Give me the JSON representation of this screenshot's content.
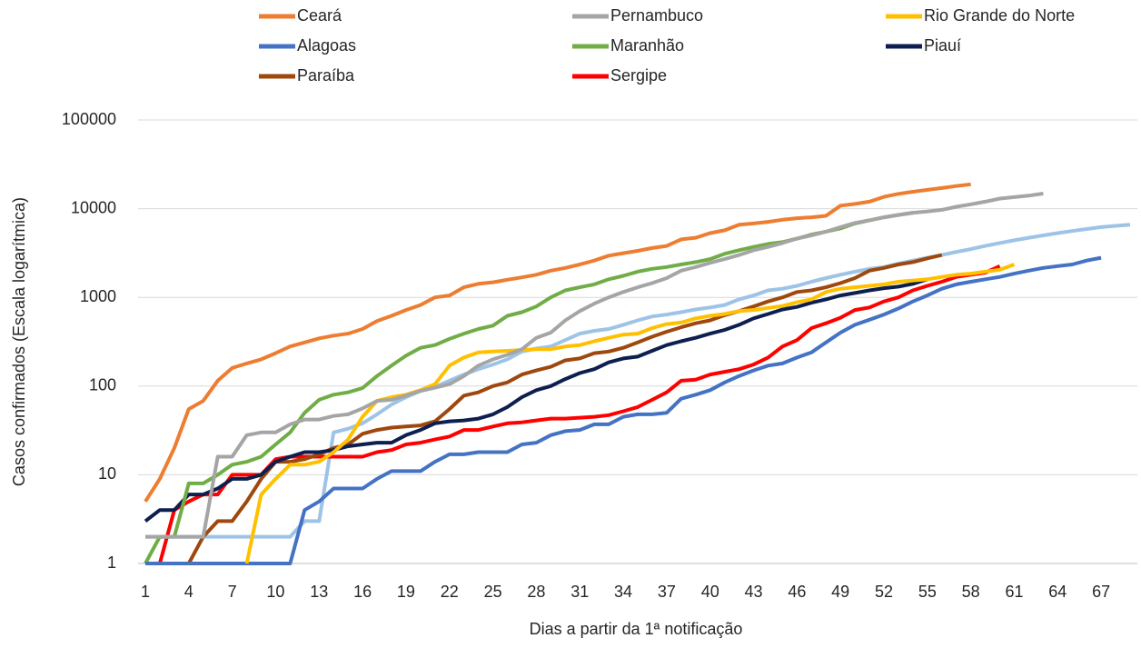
{
  "chart_data": {
    "type": "line",
    "y_label": "Casos confirmados (Escala logarítmica)",
    "x_label": "Dias a partir da 1ª notificação",
    "x": [
      1,
      2,
      3,
      4,
      5,
      6,
      7,
      8,
      9,
      10,
      11,
      12,
      13,
      14,
      15,
      16,
      17,
      18,
      19,
      20,
      21,
      22,
      23,
      24,
      25,
      26,
      27,
      28,
      29,
      30,
      31,
      32,
      33,
      34,
      35,
      36,
      37,
      38,
      39,
      40,
      41,
      42,
      43,
      44,
      45,
      46,
      47,
      48,
      49,
      50,
      51,
      52,
      53,
      54,
      55,
      56,
      57,
      58,
      59,
      60,
      61,
      62,
      63,
      64,
      65,
      66,
      67,
      68,
      69
    ],
    "xlim": [
      0.5,
      69.5
    ],
    "xticks": [
      1,
      4,
      7,
      10,
      13,
      16,
      19,
      22,
      25,
      28,
      31,
      34,
      37,
      40,
      43,
      46,
      49,
      52,
      55,
      58,
      61,
      64,
      67
    ],
    "ylim": [
      1,
      100000
    ],
    "yticks": [
      1,
      10,
      100,
      1000,
      10000,
      100000
    ],
    "ylog": true,
    "grid": true,
    "legend": "top",
    "series": [
      {
        "name": "Ceará",
        "color": "#ed7d31",
        "values": [
          5,
          9,
          20,
          55,
          68,
          115,
          160,
          180,
          200,
          235,
          280,
          310,
          345,
          370,
          390,
          440,
          540,
          620,
          720,
          820,
          1000,
          1050,
          1300,
          1420,
          1480,
          1580,
          1680,
          1800,
          2000,
          2150,
          2350,
          2600,
          2950,
          3150,
          3350,
          3600,
          3800,
          4500,
          4700,
          5300,
          5700,
          6600,
          6800,
          7100,
          7500,
          7800,
          8000,
          8300,
          10800,
          11300,
          12000,
          13600,
          14700,
          15500,
          16300,
          17100,
          18000,
          18800,
          null,
          null,
          null,
          null,
          null,
          null,
          null,
          null,
          null,
          null,
          null
        ]
      },
      {
        "name": "Pernambuco",
        "color": "#a5a5a5",
        "values": [
          2,
          2,
          2,
          2,
          2,
          16,
          16,
          28,
          30,
          30,
          37,
          42,
          42,
          46,
          48,
          56,
          68,
          70,
          78,
          88,
          96,
          105,
          130,
          170,
          200,
          225,
          260,
          350,
          400,
          550,
          700,
          850,
          1000,
          1150,
          1300,
          1450,
          1650,
          2000,
          2200,
          2450,
          2700,
          3000,
          3400,
          3700,
          4100,
          4600,
          5000,
          5500,
          6200,
          6900,
          7400,
          8000,
          8500,
          9000,
          9300,
          9700,
          10500,
          11200,
          12000,
          13000,
          13500,
          14000,
          14800,
          null,
          null,
          null,
          null,
          null,
          null
        ]
      },
      {
        "name": "Rio Grande do Norte",
        "color": "#ffc000",
        "values": [
          null,
          null,
          null,
          null,
          null,
          null,
          null,
          1,
          6,
          9,
          13,
          13,
          14,
          18,
          25,
          45,
          68,
          75,
          80,
          90,
          105,
          170,
          210,
          240,
          245,
          250,
          255,
          260,
          260,
          280,
          290,
          320,
          350,
          380,
          390,
          450,
          500,
          520,
          580,
          620,
          650,
          700,
          720,
          760,
          800,
          880,
          950,
          1150,
          1250,
          1300,
          1350,
          1400,
          1500,
          1550,
          1600,
          1700,
          1800,
          1850,
          1950,
          2050,
          2350,
          null,
          null,
          null,
          null,
          null,
          null,
          null,
          null
        ]
      },
      {
        "name": "Alagoas",
        "color": "#4472c4",
        "values": [
          1,
          1,
          1,
          1,
          1,
          1,
          1,
          1,
          1,
          1,
          1,
          4,
          5,
          7,
          7,
          7,
          9,
          11,
          11,
          11,
          14,
          17,
          17,
          18,
          18,
          18,
          22,
          23,
          28,
          31,
          32,
          37,
          37,
          45,
          48,
          48,
          50,
          72,
          80,
          90,
          110,
          130,
          150,
          170,
          180,
          210,
          240,
          310,
          400,
          490,
          560,
          640,
          750,
          900,
          1050,
          1250,
          1400,
          1500,
          1600,
          1700,
          1850,
          2000,
          2150,
          2250,
          2350,
          2600,
          2800,
          null,
          null
        ]
      },
      {
        "name": "Maranhão",
        "color": "#70ad47",
        "values": [
          1,
          2,
          2,
          8,
          8,
          10,
          13,
          14,
          16,
          22,
          30,
          50,
          70,
          80,
          85,
          95,
          130,
          170,
          220,
          270,
          290,
          340,
          390,
          440,
          480,
          620,
          680,
          790,
          1000,
          1200,
          1300,
          1400,
          1600,
          1750,
          1950,
          2100,
          2200,
          2350,
          2500,
          2700,
          3100,
          3400,
          3700,
          4000,
          4200,
          4600,
          5100,
          5500,
          6000,
          6800,
          7400,
          8000,
          8500,
          9000,
          null,
          null,
          null,
          null,
          null,
          null,
          null,
          null,
          null,
          null,
          null,
          null,
          null,
          null,
          null
        ]
      },
      {
        "name": "Piauí",
        "color": "#0d1f4f",
        "values": [
          3,
          4,
          4,
          6,
          6,
          7,
          9,
          9,
          10,
          14,
          16,
          18,
          18,
          19,
          21,
          22,
          23,
          23,
          28,
          32,
          38,
          40,
          41,
          43,
          48,
          58,
          75,
          90,
          100,
          120,
          140,
          155,
          185,
          205,
          215,
          250,
          290,
          320,
          350,
          390,
          430,
          490,
          580,
          650,
          730,
          780,
          870,
          950,
          1050,
          1120,
          1200,
          1270,
          1320,
          1420,
          1600,
          null,
          null,
          null,
          null,
          null,
          null,
          null,
          null,
          null,
          null,
          null,
          null,
          null,
          null
        ]
      },
      {
        "name": "Paraíba",
        "color": "#9e480e",
        "values": [
          1,
          1,
          1,
          1,
          2,
          3,
          3,
          5,
          9,
          14,
          14,
          15,
          17,
          20,
          22,
          29,
          32,
          34,
          35,
          36,
          40,
          55,
          78,
          85,
          100,
          110,
          135,
          150,
          165,
          195,
          205,
          235,
          245,
          270,
          310,
          360,
          410,
          460,
          510,
          550,
          630,
          700,
          790,
          900,
          1000,
          1150,
          1200,
          1300,
          1450,
          1650,
          2000,
          2150,
          2350,
          2500,
          2750,
          3000,
          null,
          null,
          null,
          null,
          null,
          null,
          null,
          null,
          null,
          null,
          null,
          null,
          null
        ]
      },
      {
        "name": "Sergipe",
        "color": "#ff0000",
        "values": [
          1,
          1,
          4,
          5,
          6,
          6,
          10,
          10,
          10,
          15,
          16,
          16,
          16,
          16,
          16,
          16,
          18,
          19,
          22,
          23,
          25,
          27,
          32,
          32,
          35,
          38,
          39,
          41,
          43,
          43,
          44,
          45,
          47,
          52,
          58,
          70,
          85,
          115,
          118,
          135,
          145,
          155,
          175,
          210,
          280,
          330,
          450,
          510,
          590,
          720,
          770,
          900,
          1000,
          1200,
          1350,
          1500,
          1700,
          1800,
          1900,
          2250,
          null,
          null,
          null,
          null,
          null,
          null,
          null,
          null,
          null
        ]
      },
      {
        "color": "#9dc3e6",
        "values": [
          2,
          2,
          2,
          2,
          2,
          2,
          2,
          2,
          2,
          2,
          2,
          3,
          3,
          30,
          33,
          38,
          48,
          62,
          75,
          88,
          98,
          115,
          135,
          155,
          175,
          200,
          245,
          265,
          280,
          330,
          390,
          420,
          440,
          490,
          550,
          610,
          640,
          680,
          730,
          770,
          820,
          950,
          1050,
          1200,
          1250,
          1350,
          1500,
          1650,
          1800,
          1950,
          2100,
          2200,
          2400,
          2600,
          2800,
          3000,
          3250,
          3500,
          3800,
          4100,
          4400,
          4700,
          5000,
          5300,
          5600,
          5900,
          6200,
          6400,
          6600
        ]
      }
    ]
  }
}
